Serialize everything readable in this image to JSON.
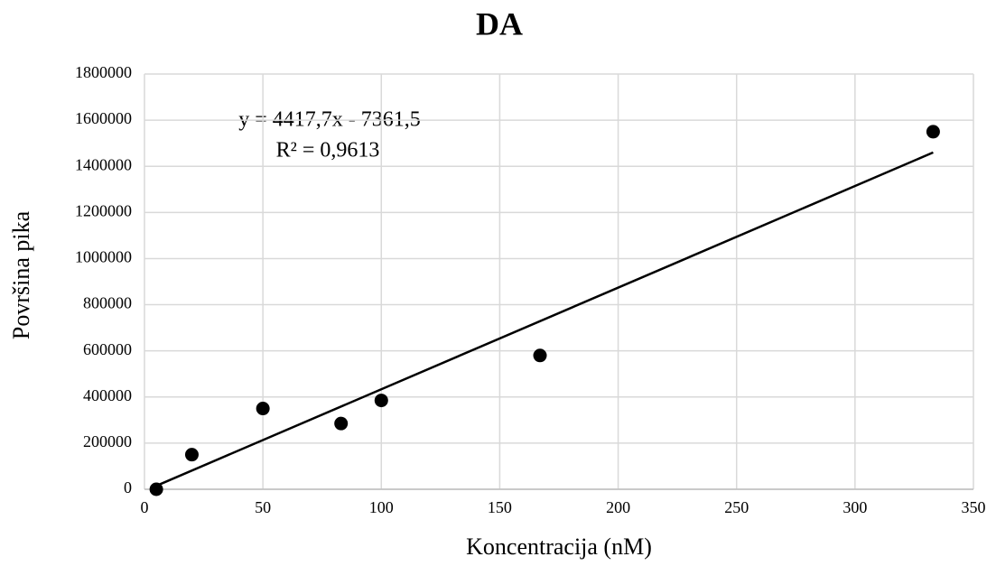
{
  "chart_data": {
    "type": "scatter",
    "title": "DA",
    "x_label": "Koncentracija (nM)",
    "y_label": "Površina pika",
    "annotations": [
      "y = 4417,7x - 7361,5",
      "R² = 0,9613"
    ],
    "x": [
      5,
      20,
      50,
      83,
      100,
      167,
      333
    ],
    "values": [
      0,
      150000,
      350000,
      285000,
      385000,
      580000,
      1550000
    ],
    "color": "#000000",
    "trendline": {
      "x": [
        5,
        333
      ],
      "values": [
        15000,
        1460000
      ],
      "color": "#000000"
    },
    "xlim": [
      0,
      350
    ],
    "xticks": [
      0,
      50,
      100,
      150,
      200,
      250,
      300,
      350
    ],
    "ylim": [
      0,
      1800000
    ],
    "yticks": [
      0,
      200000,
      400000,
      600000,
      800000,
      1000000,
      1200000,
      1400000,
      1600000,
      1800000
    ],
    "grid": true
  }
}
